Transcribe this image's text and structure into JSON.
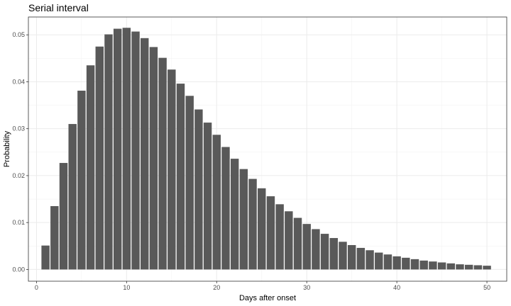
{
  "chart_data": {
    "type": "bar",
    "title": "Serial interval",
    "xlabel": "Days after onset",
    "ylabel": "Probability",
    "xlim": [
      -0.9,
      52.2
    ],
    "ylim": [
      -0.0025,
      0.0538
    ],
    "xticks": [
      0,
      10,
      20,
      30,
      40,
      50
    ],
    "xtick_labels": [
      "0",
      "10",
      "20",
      "30",
      "40",
      "50"
    ],
    "yticks": [
      0.0,
      0.01,
      0.02,
      0.03,
      0.04,
      0.05
    ],
    "ytick_labels": [
      "0.00",
      "0.01",
      "0.02",
      "0.03",
      "0.04",
      "0.05"
    ],
    "grid": true,
    "bar_color": "#595959",
    "x": [
      1,
      2,
      3,
      4,
      5,
      6,
      7,
      8,
      9,
      10,
      11,
      12,
      13,
      14,
      15,
      16,
      17,
      18,
      19,
      20,
      21,
      22,
      23,
      24,
      25,
      26,
      27,
      28,
      29,
      30,
      31,
      32,
      33,
      34,
      35,
      36,
      37,
      38,
      39,
      40,
      41,
      42,
      43,
      44,
      45,
      46,
      47,
      48,
      49,
      50
    ],
    "values": [
      0.0051,
      0.0135,
      0.0227,
      0.031,
      0.0381,
      0.0435,
      0.0475,
      0.0501,
      0.0513,
      0.0515,
      0.0507,
      0.0493,
      0.0474,
      0.0451,
      0.0426,
      0.0396,
      0.037,
      0.0341,
      0.0313,
      0.0287,
      0.0261,
      0.0236,
      0.0214,
      0.0193,
      0.0173,
      0.0156,
      0.0139,
      0.0124,
      0.011,
      0.0097,
      0.0086,
      0.0076,
      0.0067,
      0.0059,
      0.0052,
      0.0046,
      0.0041,
      0.0036,
      0.0032,
      0.0028,
      0.0025,
      0.0022,
      0.0019,
      0.0017,
      0.0015,
      0.0013,
      0.0011,
      0.001,
      0.0009,
      0.0008
    ]
  }
}
